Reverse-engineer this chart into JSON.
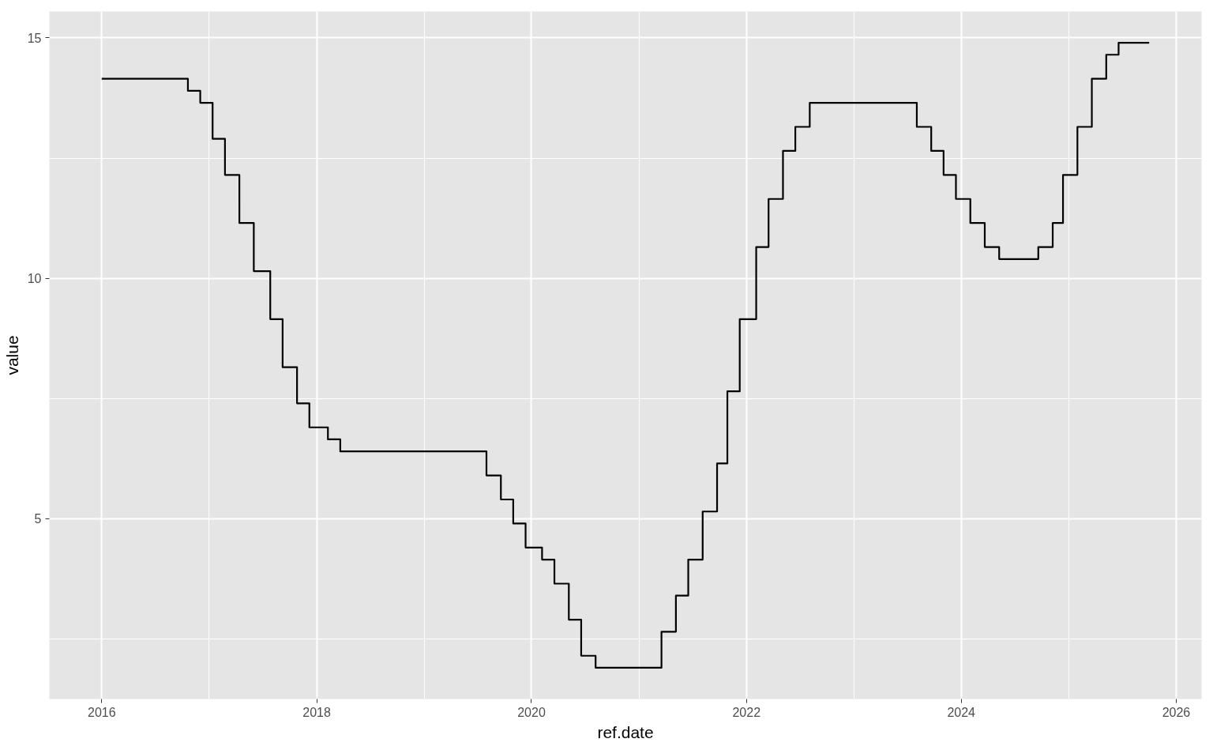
{
  "chart_data": {
    "type": "step",
    "xlabel": "ref.date",
    "ylabel": "value",
    "x": [
      "2016-01-01",
      "2016-10-20",
      "2016-12-01",
      "2017-01-12",
      "2017-02-23",
      "2017-04-13",
      "2017-06-01",
      "2017-07-27",
      "2017-09-07",
      "2017-10-26",
      "2017-12-07",
      "2018-02-08",
      "2018-03-22",
      "2019-08-01",
      "2019-09-19",
      "2019-10-31",
      "2019-12-12",
      "2020-02-06",
      "2020-03-19",
      "2020-05-07",
      "2020-06-18",
      "2020-08-06",
      "2021-03-18",
      "2021-05-06",
      "2021-06-17",
      "2021-08-05",
      "2021-09-23",
      "2021-10-28",
      "2021-12-09",
      "2022-02-03",
      "2022-03-17",
      "2022-05-05",
      "2022-06-16",
      "2022-08-04",
      "2023-08-03",
      "2023-09-21",
      "2023-11-02",
      "2023-12-14",
      "2024-02-01",
      "2024-03-21",
      "2024-05-09",
      "2024-09-19",
      "2024-11-07",
      "2024-12-12",
      "2025-01-30",
      "2025-03-20",
      "2025-05-08",
      "2025-06-19",
      "2025-10-01"
    ],
    "series": [
      {
        "color": "#000000",
        "values": [
          14.15,
          13.9,
          13.65,
          12.9,
          12.15,
          11.15,
          10.15,
          9.15,
          8.15,
          7.4,
          6.9,
          6.65,
          6.4,
          5.9,
          5.4,
          4.9,
          4.4,
          4.15,
          3.65,
          2.9,
          2.15,
          1.9,
          2.65,
          3.4,
          4.15,
          5.15,
          6.15,
          7.65,
          9.15,
          10.65,
          11.65,
          12.65,
          13.15,
          13.65,
          13.15,
          12.65,
          12.15,
          11.65,
          11.15,
          10.65,
          10.4,
          10.65,
          11.15,
          12.15,
          13.15,
          14.15,
          14.65,
          14.9,
          14.9
        ]
      }
    ],
    "xlim": [
      "2015-07-07",
      "2026-03-28"
    ],
    "xticks": [
      "2016",
      "2018",
      "2020",
      "2022",
      "2024",
      "2026"
    ],
    "ylim": [
      1.25,
      15.55
    ],
    "yticks": [
      5,
      10,
      15
    ],
    "grid": true
  }
}
